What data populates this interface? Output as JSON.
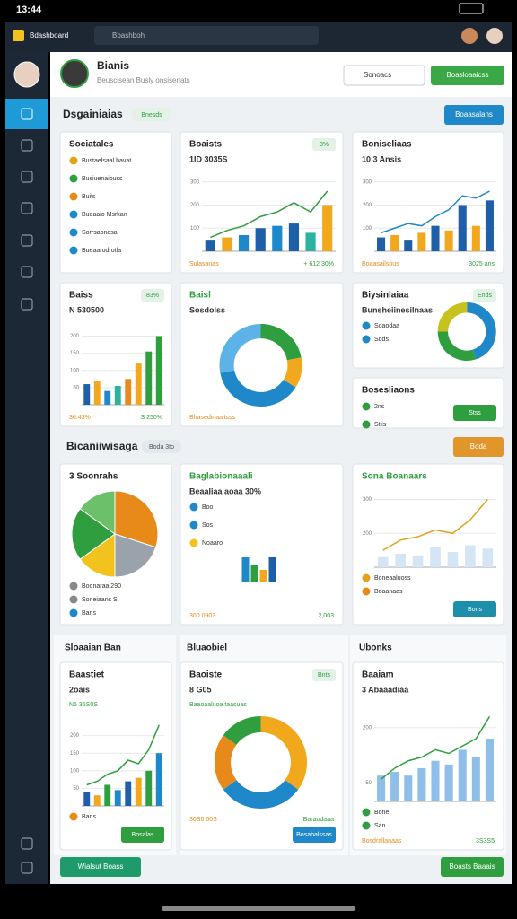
{
  "status_bar": {
    "time": "13:44"
  },
  "app_bar": {
    "title": "Bdashboard",
    "search": "Bbashboh"
  },
  "header": {
    "name": "Bianis",
    "subtitle": "Beuscisean Busly onsisenats",
    "select": "Sonoacs",
    "button": "Boasloaaicss"
  },
  "sections": [
    {
      "title": "Dsgainiaias",
      "pill": "Bnesds",
      "button": "Boaasalans"
    },
    {
      "title": "Bicaniiwisaga",
      "pill": "Boda 3to",
      "button": "Boda"
    }
  ],
  "panel_titles": [
    "Sloaaian Ban",
    "Bluaobiel",
    "Ubonks"
  ],
  "bottom_buttons": [
    "Wialsut Boass",
    "Boasts Baaais"
  ],
  "cards": [
    {
      "title": "Sociatales",
      "items": [
        {
          "text": "Bustaelsaal bavat",
          "color": "#e0a31c"
        },
        {
          "text": "Busiuenaiouss",
          "color": "#2e9e3e"
        },
        {
          "text": "Buits",
          "color": "#e88a1a"
        },
        {
          "text": "Budaaio Msrkan",
          "color": "#1e88c8"
        },
        {
          "text": "Sorrsaonasa",
          "color": "#1e88c8"
        },
        {
          "text": "Bueaarodrotla",
          "color": "#1e88c8"
        }
      ]
    },
    {
      "title": "Boaists",
      "kpi": "1ID 3035S",
      "badge": "3%",
      "chart": {
        "type": "bar-line",
        "values": [
          50,
          60,
          70,
          100,
          110,
          120,
          80,
          200
        ],
        "line": [
          60,
          90,
          110,
          150,
          170,
          210,
          170,
          260
        ],
        "colors": [
          "#1e5fa8",
          "#f2a81d",
          "#1e88c8",
          "#1e5fa8",
          "#1e88c8",
          "#1e5fa8",
          "#2bb3a0",
          "#f2a81d"
        ],
        "line_color": "#2e9e3e",
        "ylim": [
          0,
          330
        ],
        "yticks": [
          100,
          200,
          300
        ]
      },
      "footer": [
        "Sulasanas",
        "+ 612 30%"
      ]
    },
    {
      "title": "Boniseliaas",
      "kpi": "10 3 Ansis",
      "chart": {
        "type": "bar-line",
        "values": [
          60,
          70,
          50,
          80,
          110,
          90,
          200,
          110,
          220
        ],
        "line": [
          80,
          100,
          120,
          110,
          150,
          180,
          240,
          230,
          260
        ],
        "colors": [
          "#1e5fa8",
          "#f2a81d"
        ],
        "line_color": "#1e88c8",
        "ylim": [
          0,
          330
        ],
        "yticks": [
          100,
          200,
          300
        ]
      },
      "footer": [
        "Boaasailsous",
        "3025 ans"
      ]
    },
    {
      "title": "Baiss",
      "kpi": "N 530500",
      "badge": "83%",
      "chart": {
        "type": "bar-line",
        "values": [
          60,
          70,
          40,
          55,
          75,
          120,
          155,
          200
        ],
        "colors": [
          "#1e5fa8",
          "#f2a81d",
          "#1e88c8",
          "#2bb3a0",
          "#e88a1a",
          "#f2a81d",
          "#2e9e3e",
          "#2e9e3e"
        ],
        "ylim": [
          0,
          230
        ],
        "yticks": [
          50,
          100,
          150,
          200
        ]
      },
      "footer": [
        "36.43%",
        "S 250%"
      ]
    },
    {
      "title": "Baisl",
      "title_color": "#2e9e3e",
      "kpi": "Sosdolss",
      "chart": {
        "type": "donut",
        "values": [
          22,
          12,
          38,
          28
        ],
        "colors": [
          "#2e9e3e",
          "#f2a81d",
          "#1e88c8",
          "#5db3e8"
        ]
      },
      "footer": [
        "Bhasedinaaltsss"
      ]
    },
    {
      "title": "Biysinlaiaa",
      "badge": "Ends",
      "kpi": "Bunsheiinesilnaas",
      "items": [
        {
          "text": "Soaodaa",
          "color": "#1e88c8"
        },
        {
          "text": "Sdds",
          "color": "#1e88c8"
        }
      ],
      "chart": {
        "type": "donut",
        "values": [
          45,
          30,
          25
        ],
        "colors": [
          "#1e88c8",
          "#2e9e3e",
          "#c8c21e"
        ]
      }
    },
    {
      "title": "Bosesliaons",
      "items": [
        {
          "text": "2ns",
          "color": "#2e9e3e"
        },
        {
          "text": "Stlis",
          "color": "#2e9e3e"
        }
      ],
      "button": "Stss",
      "button_color": "#2e9e3e"
    },
    {
      "title": "3 Soonrahs",
      "chart": {
        "type": "pie",
        "values": [
          30,
          20,
          15,
          20,
          15
        ],
        "colors": [
          "#e88a1a",
          "#9aa3ab",
          "#f2c21d",
          "#2e9e3e",
          "#6cc06a"
        ]
      },
      "items": [
        {
          "text": "Boonaraa 290",
          "color": "#888888"
        },
        {
          "text": "Soneiaans S",
          "color": "#888888"
        },
        {
          "text": "Bans",
          "color": "#1e88c8"
        }
      ]
    },
    {
      "title": "Baglabionaaali",
      "title_color": "#2e9e3e",
      "kpi": "Beaaliaa aoaa 30%",
      "items": [
        {
          "text": "Boo",
          "color": "#1e88c8"
        },
        {
          "text": "Sos",
          "color": "#1e88c8"
        },
        {
          "text": "Noaaro",
          "color": "#f2c21d"
        }
      ],
      "footer": [
        "300 0903",
        "2,003"
      ]
    },
    {
      "title": "Sona Boanaars",
      "title_color": "#2e9e3e",
      "chart": {
        "type": "bar-line",
        "values": [
          130,
          140,
          135,
          160,
          145,
          165,
          155
        ],
        "line": [
          150,
          180,
          190,
          210,
          200,
          240,
          300
        ],
        "colors": [
          "#d4e6f5"
        ],
        "line_color": "#e0a31c",
        "ylim": [
          100,
          320
        ],
        "yticks": [
          200,
          300
        ]
      },
      "items": [
        {
          "text": "Boneaaluoss",
          "color": "#e0a31c"
        },
        {
          "text": "Boaanaas",
          "color": "#e88a1a"
        }
      ],
      "button": "Bons",
      "button_color": "#1e8fa8"
    },
    {
      "title": "Baastiet",
      "kpi": "2oais",
      "sub": "N5 35S0S",
      "chart": {
        "type": "bar-line",
        "values": [
          40,
          30,
          60,
          45,
          70,
          80,
          100,
          150
        ],
        "line": [
          60,
          70,
          90,
          100,
          130,
          120,
          160,
          230
        ],
        "colors": [
          "#1e5fa8",
          "#f2a81d",
          "#2e9e3e",
          "#1e88c8"
        ],
        "line_color": "#2e9e3e",
        "ylim": [
          0,
          250
        ],
        "yticks": [
          50,
          100,
          150,
          200
        ]
      },
      "items": [
        {
          "text": "Bans",
          "color": "#e88a1a"
        }
      ],
      "button": "Bosalas",
      "button_color": "#2e9e3e"
    },
    {
      "title": "Baoiste",
      "kpi": "8 G05",
      "badge": "Bnts",
      "sub": "Baaoaaluoa taasuas",
      "chart": {
        "type": "donut",
        "values": [
          35,
          30,
          20,
          15
        ],
        "colors": [
          "#f2a81d",
          "#1e88c8",
          "#e88a1a",
          "#2e9e3e"
        ]
      },
      "footer": [
        "30S6 60S",
        "Baraodaaa"
      ],
      "button": "Bosabalssas",
      "button_color": "#1e88c8"
    },
    {
      "title": "Baaiam",
      "kpi": "3 Abaaadiaa",
      "chart": {
        "type": "bar-line",
        "values": [
          70,
          80,
          70,
          90,
          110,
          100,
          140,
          120,
          170
        ],
        "line": [
          60,
          90,
          110,
          120,
          140,
          130,
          150,
          170,
          230
        ],
        "colors": [
          "#8fbfe8"
        ],
        "line_color": "#2e9e3e",
        "ylim": [
          0,
          260
        ],
        "yticks": [
          50,
          200
        ]
      },
      "footer": [
        "Bosdrallanaas",
        "3S3S5"
      ],
      "items": [
        {
          "text": "Bone",
          "color": "#2e9e3e"
        },
        {
          "text": "San",
          "color": "#2e9e3e"
        }
      ]
    }
  ]
}
